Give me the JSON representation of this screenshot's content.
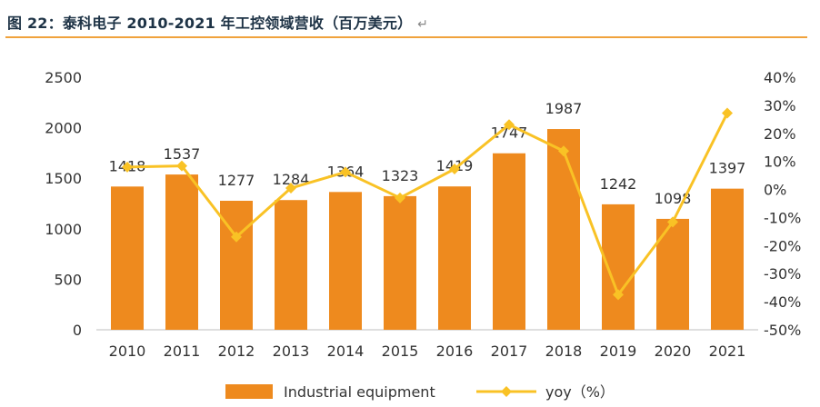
{
  "title": "图 22：泰科电子 2010-2021 年工控领域营收（百万美元）",
  "return_mark": "↵",
  "colors": {
    "bar": "#ee8a1e",
    "line": "#f9c225",
    "rule": "#f0a23c",
    "title": "#1e3346"
  },
  "chart_data": {
    "type": "bar+line",
    "categories": [
      "2010",
      "2011",
      "2012",
      "2013",
      "2014",
      "2015",
      "2016",
      "2017",
      "2018",
      "2019",
      "2020",
      "2021"
    ],
    "series": [
      {
        "name": "Industrial equipment",
        "type": "bar",
        "axis": "left",
        "values": [
          1418,
          1537,
          1277,
          1284,
          1364,
          1323,
          1419,
          1747,
          1987,
          1242,
          1098,
          1397
        ]
      },
      {
        "name": "yoy（%）",
        "type": "line",
        "axis": "right",
        "values": [
          8,
          8.4,
          -16.9,
          0.5,
          6.2,
          -3.0,
          7.3,
          23.1,
          13.7,
          -37.5,
          -11.6,
          27.2
        ]
      }
    ],
    "ylim_left": [
      0,
      2500
    ],
    "yticks_left": [
      "0",
      "500",
      "1000",
      "1500",
      "2000",
      "2500"
    ],
    "ylim_right": [
      -50,
      40
    ],
    "yticks_right": [
      "-50%",
      "-40%",
      "-30%",
      "-20%",
      "-10%",
      "0%",
      "10%",
      "20%",
      "30%",
      "40%"
    ],
    "grid": false,
    "legend_position": "bottom"
  }
}
